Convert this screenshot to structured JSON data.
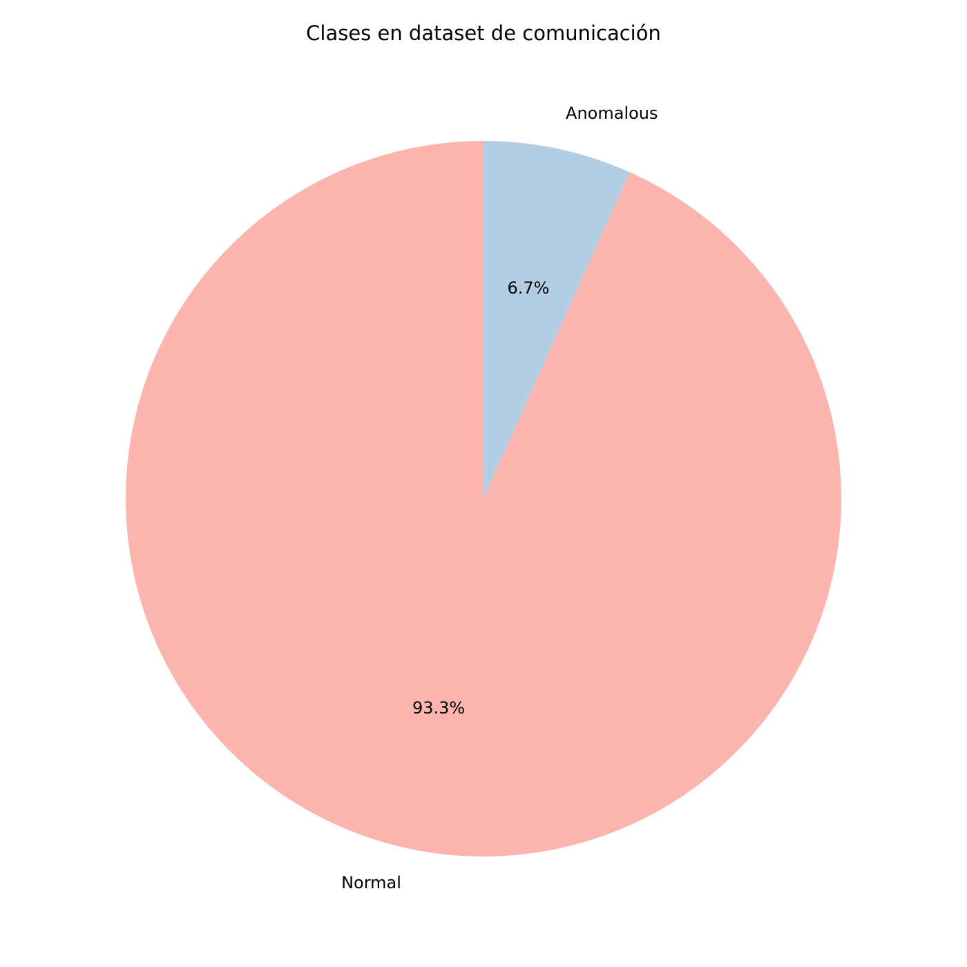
{
  "chart_data": {
    "type": "pie",
    "title": "Clases en dataset de comunicación",
    "start": "top",
    "direction": "clockwise",
    "slices": [
      {
        "label": "Anomalous",
        "value": 6.7,
        "pct_label": "6.7%",
        "color": "#b3cde3"
      },
      {
        "label": "Normal",
        "value": 93.3,
        "pct_label": "93.3%",
        "color": "#fbb4ae"
      }
    ]
  }
}
